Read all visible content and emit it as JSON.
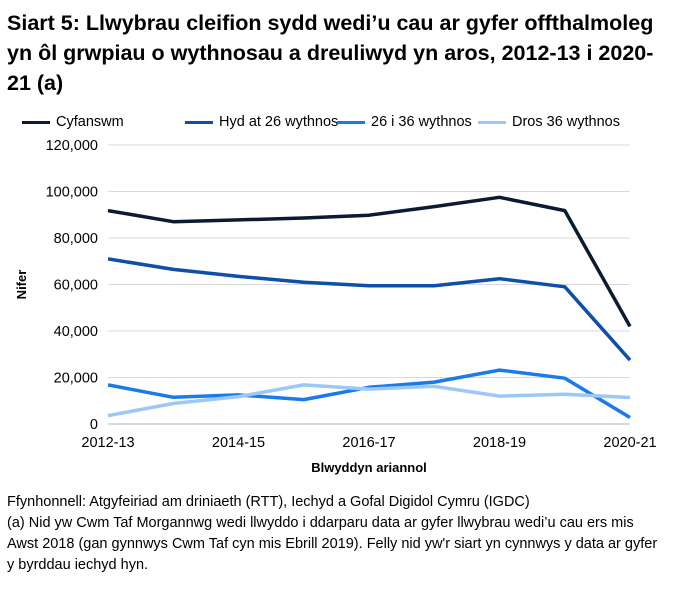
{
  "title": "Siart 5: Llwybrau cleifion sydd wedi’u cau ar gyfer offthalmoleg yn ôl grwpiau o wythnosau a dreuliwyd yn aros, 2012-13 i 2020-21 (a)",
  "notes": {
    "source": "Ffynhonnell: Atgyfeiriad am driniaeth (RTT), Iechyd a Gofal Digidol Cymru (IGDC)",
    "footnote": "(a) Nid yw Cwm Taf Morgannwg wedi llwyddo i ddarparu data ar gyfer llwybrau wedi’u cau ers mis Awst 2018 (gan gynnwys Cwm Taf cyn mis Ebrill 2019). Felly nid yw'r siart yn cynnwys y data ar gyfer y byrddau iechyd hyn."
  },
  "chart_data": {
    "type": "line",
    "xlabel": "Blwyddyn ariannol",
    "ylabel": "Nifer",
    "x": [
      "2012-13",
      "2013-14",
      "2014-15",
      "2015-16",
      "2016-17",
      "2017-18",
      "2018-19",
      "2019-20",
      "2020-21"
    ],
    "x_tick_labels": [
      "2012-13",
      "2014-15",
      "2016-17",
      "2018-19",
      "2020-21"
    ],
    "y_tick_labels": [
      "0",
      "20,000",
      "40,000",
      "60,000",
      "80,000",
      "100,000",
      "120,000"
    ],
    "ylim": [
      0,
      120000
    ],
    "grid": true,
    "legend_position": "top",
    "series": [
      {
        "name": "Cyfanswm",
        "color": "#0b1b33",
        "values": [
          91800,
          87000,
          87800,
          88600,
          89800,
          93500,
          97500,
          91800,
          42000
        ]
      },
      {
        "name": "Hyd at 26 wythnos",
        "color": "#0e4fa8",
        "values": [
          71000,
          66500,
          63500,
          61000,
          59500,
          59500,
          62500,
          59000,
          27500
        ]
      },
      {
        "name": "26 i 36 wythnos",
        "color": "#1a7aea",
        "values": [
          16800,
          11500,
          12500,
          10500,
          15800,
          18000,
          23200,
          19700,
          2800
        ]
      },
      {
        "name": "Dros 36 wythnos",
        "color": "#9cc8f7",
        "values": [
          3600,
          8800,
          11800,
          16800,
          15000,
          16200,
          12000,
          12800,
          11400
        ]
      }
    ]
  }
}
